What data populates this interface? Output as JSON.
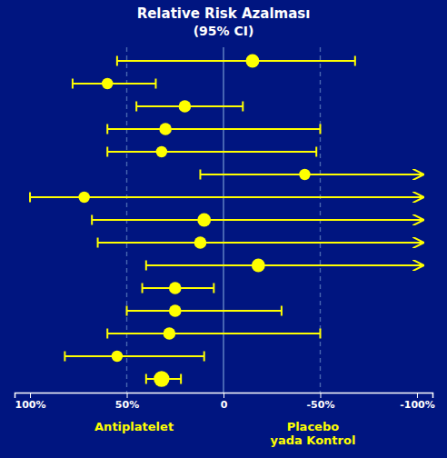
{
  "chart_data": {
    "type": "forest",
    "title": "Relative Risk Azalması",
    "subtitle": "(95% CI)",
    "annotations": [
      "Antiplatelet",
      "Placebo\nyada Kontrol"
    ],
    "values": [
      -15,
      60,
      20,
      30,
      32,
      -42,
      72,
      10,
      12,
      -18,
      25,
      25,
      28,
      55,
      32
    ],
    "lo": [
      55,
      78,
      45,
      60,
      60,
      12,
      100,
      68,
      65,
      40,
      42,
      50,
      60,
      82,
      40
    ],
    "hi": [
      -68,
      35,
      -10,
      -50,
      -48,
      -103,
      -103,
      -103,
      -103,
      -103,
      5,
      -30,
      -50,
      10,
      22
    ],
    "arrow": [
      false,
      false,
      false,
      false,
      false,
      true,
      true,
      true,
      true,
      true,
      false,
      false,
      false,
      false,
      false
    ],
    "sizes": [
      12,
      10,
      11,
      11,
      10,
      10,
      10,
      12,
      11,
      12,
      11,
      11,
      11,
      10,
      14
    ],
    "color": "#ffff00",
    "xlim": [
      108,
      -108
    ],
    "xticks": [
      {
        "value": 100,
        "label": "100%"
      },
      {
        "value": 50,
        "label": "50%"
      },
      0,
      {
        "value": -50,
        "label": "-50%"
      },
      {
        "value": -100,
        "label": "-100%"
      }
    ],
    "reference_lines": [
      50,
      -50
    ],
    "zero_line": 0,
    "tick_labels": "x",
    "grid": false
  }
}
